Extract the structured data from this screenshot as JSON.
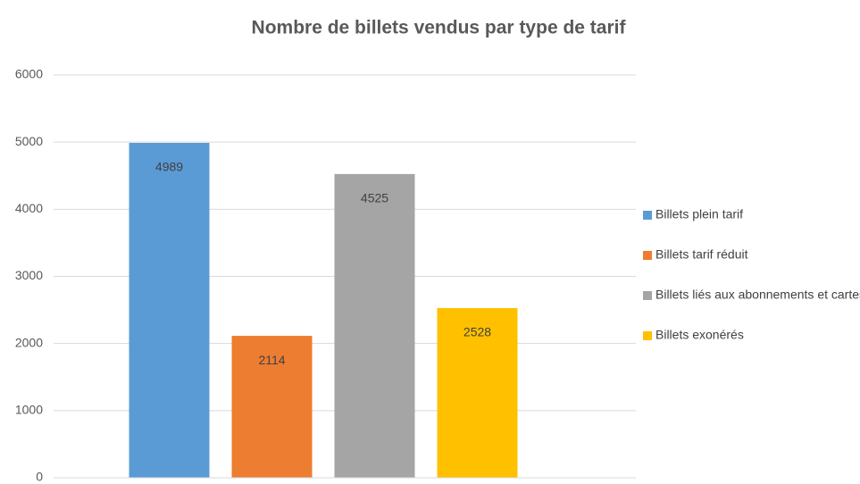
{
  "chart_data": {
    "type": "bar",
    "title": "Nombre de billets vendus par type de tarif",
    "categories": [
      null
    ],
    "series": [
      {
        "name": "Billets plein tarif",
        "color": "#5b9bd5",
        "values": [
          4989
        ]
      },
      {
        "name": "Billets tarif réduit",
        "color": "#ed7d31",
        "values": [
          2114
        ]
      },
      {
        "name": "Billets liés aux abonnements et cartes",
        "color": "#a5a5a5",
        "values": [
          4525
        ]
      },
      {
        "name": "Billets exonérés",
        "color": "#ffc000",
        "values": [
          2528
        ]
      }
    ],
    "ylim": [
      0,
      6000
    ],
    "yticks": [
      0,
      1000,
      2000,
      3000,
      4000,
      5000,
      6000
    ],
    "grid": true,
    "legend": "right"
  }
}
